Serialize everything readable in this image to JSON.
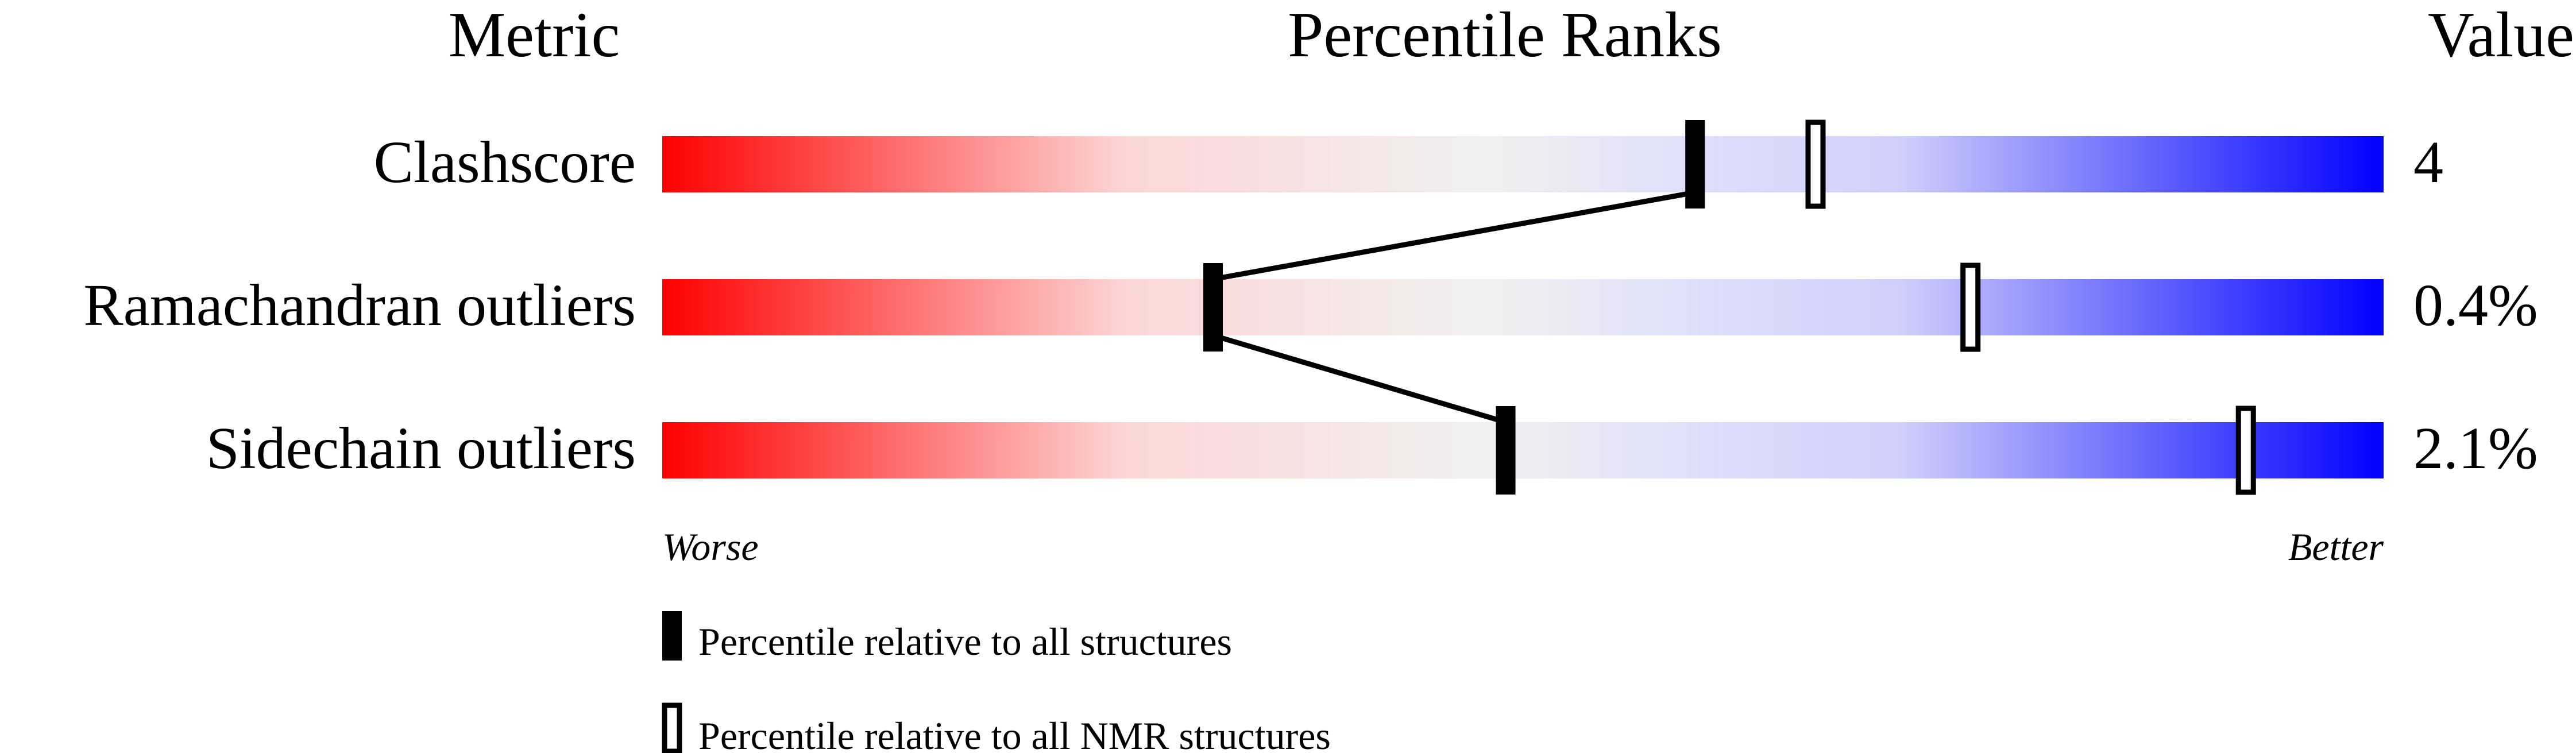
{
  "chart_data": {
    "type": "percentile-slider",
    "headers": {
      "metric": "Metric",
      "ranks": "Percentile Ranks",
      "value": "Value"
    },
    "scale_range": [
      0,
      100
    ],
    "scale_labels": {
      "low": "Worse",
      "high": "Better"
    },
    "gradient_colors": [
      "#ff0000",
      "#fdd9d9",
      "#f0f0f0",
      "#dcdcfc",
      "#0000ff"
    ],
    "rows": [
      {
        "metric": "Clashscore",
        "value": "4",
        "percentile_all": 60,
        "percentile_nmr": 67
      },
      {
        "metric": "Ramachandran outliers",
        "value": "0.4%",
        "percentile_all": 32,
        "percentile_nmr": 76
      },
      {
        "metric": "Sidechain outliers",
        "value": "2.1%",
        "percentile_all": 49,
        "percentile_nmr": 92
      }
    ],
    "legend": [
      {
        "marker": "filled",
        "label": "Percentile relative to all structures"
      },
      {
        "marker": "open",
        "label": "Percentile relative to all NMR structures"
      }
    ]
  }
}
